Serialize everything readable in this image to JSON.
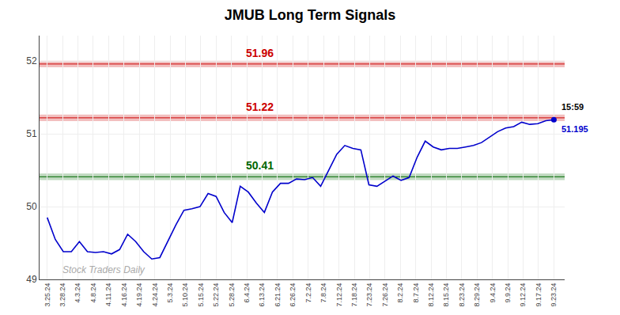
{
  "chart_data": {
    "type": "line",
    "title": "JMUB Long Term Signals",
    "color": "#0000cc",
    "x": [
      0,
      0.5238,
      1.0476,
      1.5714,
      2.0952,
      2.619,
      3.1429,
      3.6667,
      4.1905,
      4.7143,
      5.2381,
      5.7619,
      6.2857,
      6.8095,
      7.3333,
      7.8571,
      8.381,
      8.9048,
      9.4286,
      9.9524,
      10.4762,
      11.0,
      11.5238,
      12.0476,
      12.5714,
      13.0952,
      13.619,
      14.1429,
      14.6667,
      15.1905,
      15.7143,
      16.2381,
      16.7619,
      17.2857,
      17.8095,
      18.3333,
      18.8571,
      19.381,
      19.9048,
      20.4286,
      20.9524,
      21.4762,
      22.0,
      22.5238,
      23.0476,
      23.5714,
      24.0952,
      24.619,
      25.1429,
      25.6667,
      26.1905,
      26.7143,
      27.2381,
      27.7619,
      28.2857,
      28.8095,
      29.3333,
      29.8571,
      30.381,
      30.9048,
      31.4286,
      31.9524,
      32.4762,
      33.0
    ],
    "values": [
      49.85,
      49.55,
      49.38,
      49.38,
      49.52,
      49.38,
      49.37,
      49.38,
      49.35,
      49.41,
      49.62,
      49.52,
      49.38,
      49.28,
      49.3,
      49.52,
      49.75,
      49.95,
      49.97,
      50.0,
      50.18,
      50.14,
      49.92,
      49.78,
      50.28,
      50.2,
      50.05,
      49.92,
      50.2,
      50.32,
      50.32,
      50.38,
      50.37,
      50.4,
      50.28,
      50.5,
      50.72,
      50.84,
      50.8,
      50.78,
      50.3,
      50.28,
      50.35,
      50.42,
      50.36,
      50.4,
      50.68,
      50.9,
      50.82,
      50.78,
      50.8,
      50.8,
      50.82,
      50.84,
      50.88,
      50.96,
      51.03,
      51.08,
      51.1,
      51.16,
      51.13,
      51.14,
      51.18,
      51.195
    ],
    "xlim": [
      -0.5,
      33.7
    ],
    "xticks": [
      {
        "value": 0,
        "label": "3.25.24"
      },
      {
        "value": 1,
        "label": "3.28.24"
      },
      {
        "value": 2,
        "label": "4.3.24"
      },
      {
        "value": 3,
        "label": "4.8.24"
      },
      {
        "value": 4,
        "label": "4.11.24"
      },
      {
        "value": 5,
        "label": "4.16.24"
      },
      {
        "value": 6,
        "label": "4.19.24"
      },
      {
        "value": 7,
        "label": "4.24.24"
      },
      {
        "value": 8,
        "label": "5.3.24"
      },
      {
        "value": 9,
        "label": "5.10.24"
      },
      {
        "value": 10,
        "label": "5.15.24"
      },
      {
        "value": 11,
        "label": "5.22.24"
      },
      {
        "value": 12,
        "label": "5.28.24"
      },
      {
        "value": 13,
        "label": "6.4.24"
      },
      {
        "value": 14,
        "label": "6.13.24"
      },
      {
        "value": 15,
        "label": "6.21.24"
      },
      {
        "value": 16,
        "label": "6.26.24"
      },
      {
        "value": 17,
        "label": "7.2.24"
      },
      {
        "value": 18,
        "label": "7.8.24"
      },
      {
        "value": 19,
        "label": "7.12.24"
      },
      {
        "value": 20,
        "label": "7.18.24"
      },
      {
        "value": 21,
        "label": "7.23.24"
      },
      {
        "value": 22,
        "label": "7.26.24"
      },
      {
        "value": 23,
        "label": "8.2.24"
      },
      {
        "value": 24,
        "label": "8.7.24"
      },
      {
        "value": 25,
        "label": "8.12.24"
      },
      {
        "value": 26,
        "label": "8.15.24"
      },
      {
        "value": 27,
        "label": "8.23.24"
      },
      {
        "value": 28,
        "label": "8.29.24"
      },
      {
        "value": 29,
        "label": "9.4.24"
      },
      {
        "value": 30,
        "label": "9.9.24"
      },
      {
        "value": 31,
        "label": "9.12.24"
      },
      {
        "value": 32,
        "label": "9.17.24"
      },
      {
        "value": 33,
        "label": "9.23.24"
      }
    ],
    "ylim": [
      49.0,
      52.35
    ],
    "yticks": [
      49,
      50,
      51,
      52
    ],
    "grid": true,
    "hlines": [
      {
        "value": 51.96,
        "label": "51.96",
        "color": "#cc0000"
      },
      {
        "value": 51.22,
        "label": "51.22",
        "color": "#cc0000"
      },
      {
        "value": 50.41,
        "label": "50.41",
        "color": "#006600"
      }
    ],
    "last_point": {
      "time": "15:59",
      "price_label": "51.195"
    },
    "watermark": "Stock Traders Daily"
  }
}
